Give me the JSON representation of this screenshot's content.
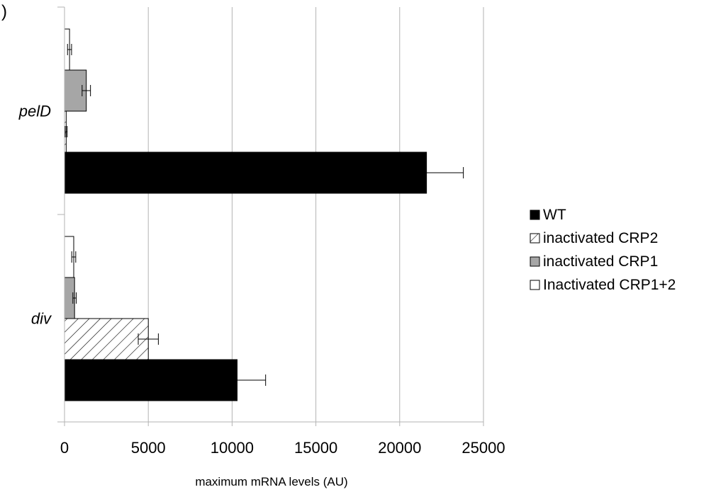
{
  "corner_mark": ")",
  "chart_data": {
    "type": "bar",
    "orientation": "horizontal",
    "title": "",
    "xlabel": "maximum mRNA levels (AU)",
    "ylabel": "",
    "xlim": [
      0,
      25000
    ],
    "xticks": [
      0,
      5000,
      10000,
      15000,
      20000,
      25000
    ],
    "xtick_labels": [
      "0",
      "5000",
      "10000",
      "15000",
      "20000",
      "25000"
    ],
    "grid": "vertical",
    "legend_position": "right",
    "categories": [
      "div",
      "pelD"
    ],
    "series": [
      {
        "name": "WT",
        "fill": "solid",
        "color": "#000000",
        "values": [
          10300,
          21600
        ],
        "errors": [
          1700,
          2200
        ]
      },
      {
        "name": "inactivated CRP2",
        "fill": "hatched",
        "color": "#ffffff",
        "values": [
          5000,
          100
        ],
        "errors": [
          600,
          60
        ]
      },
      {
        "name": "inactivated CRP1",
        "fill": "solid",
        "color": "#a6a6a6",
        "values": [
          600,
          1300
        ],
        "errors": [
          100,
          250
        ]
      },
      {
        "name": "Inactivated CRP1+2",
        "fill": "solid",
        "color": "#ffffff",
        "values": [
          550,
          300
        ],
        "errors": [
          120,
          120
        ]
      }
    ]
  }
}
